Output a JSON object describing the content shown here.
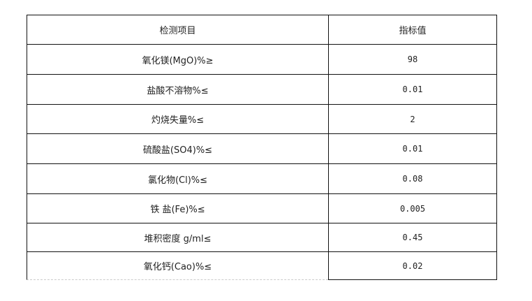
{
  "table": {
    "headers": [
      "检测项目",
      "指标值"
    ],
    "rows": [
      {
        "item": "氧化镁(MgO)%≥",
        "value": "98"
      },
      {
        "item": "盐酸不溶物%≤",
        "value": "0.01"
      },
      {
        "item": "灼烧失量%≤",
        "value": "2"
      },
      {
        "item": "硫酸盐(SO4)%≤",
        "value": "0.01"
      },
      {
        "item": "氯化物(Cl)%≤",
        "value": "0.08"
      },
      {
        "item": "铁 盐(Fe)%≤",
        "value": "0.005"
      },
      {
        "item": "堆积密度 g/ml≤",
        "value": "0.45"
      },
      {
        "item": "氧化钙(Cao)%≤",
        "value": "0.02"
      }
    ]
  }
}
